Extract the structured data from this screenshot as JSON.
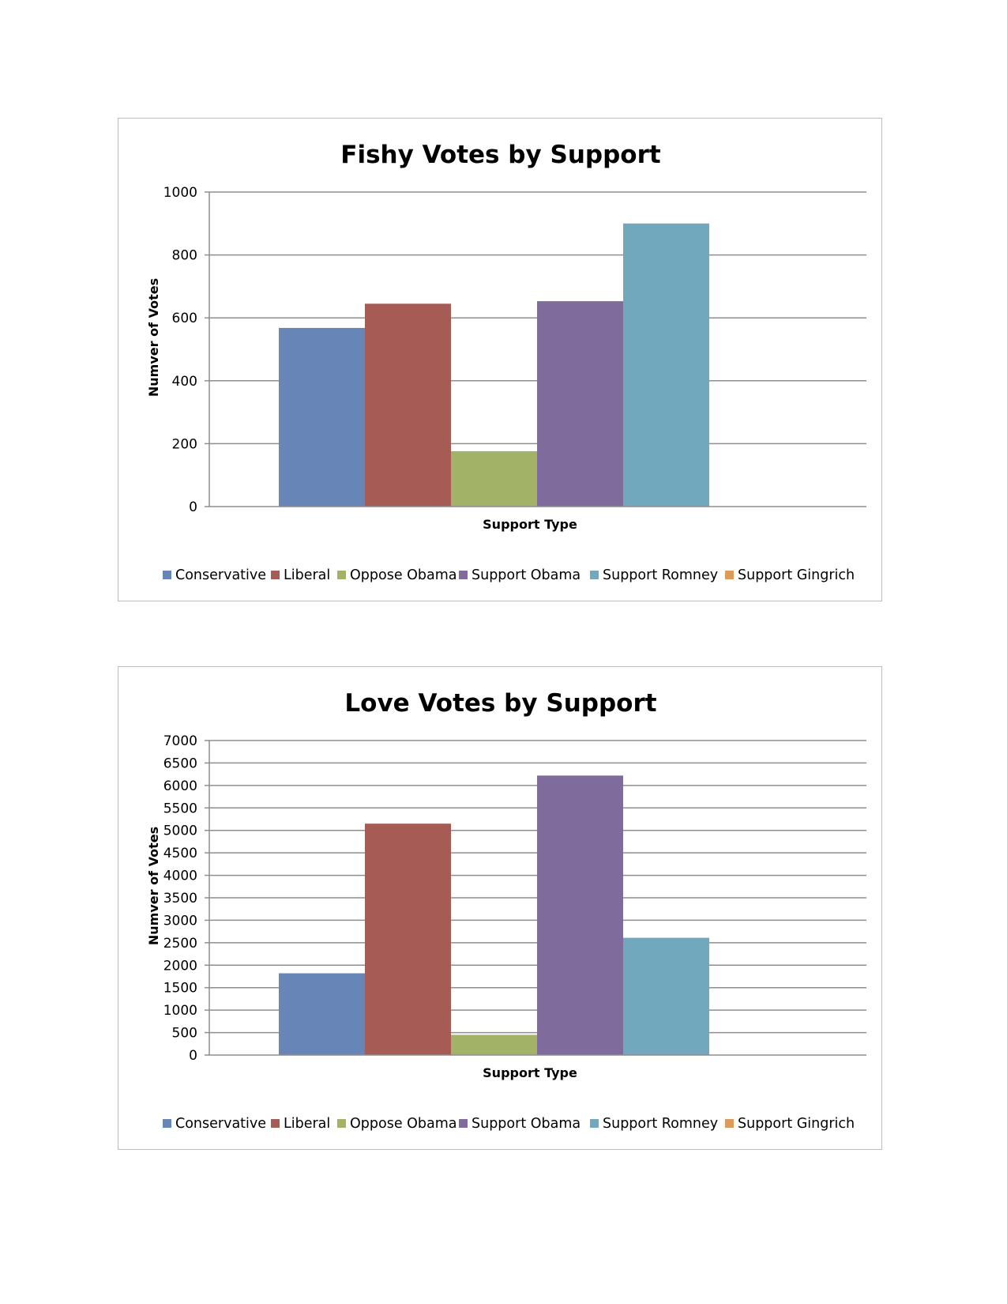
{
  "chart_data": [
    {
      "type": "bar",
      "title": "Fishy Votes by Support",
      "xlabel": "Support Type",
      "ylabel": "Numver of Votes",
      "ylim": [
        0,
        1000
      ],
      "yticks": [
        0,
        200,
        400,
        600,
        800,
        1000
      ],
      "grid": true,
      "legend": "bottom",
      "series": [
        {
          "name": "Conservative",
          "value": 568,
          "color": "#6785b6"
        },
        {
          "name": "Liberal",
          "value": 645,
          "color": "#a65b55"
        },
        {
          "name": "Oppose Obama",
          "value": 176,
          "color": "#a2b266"
        },
        {
          "name": "Support Obama",
          "value": 653,
          "color": "#7f6c9c"
        },
        {
          "name": "Support Romney",
          "value": 900,
          "color": "#72a8bd"
        },
        {
          "name": "Support Gingrich",
          "value": 0,
          "color": "#dd9a59"
        }
      ]
    },
    {
      "type": "bar",
      "title": "Love Votes by Support",
      "xlabel": "Support Type",
      "ylabel": "Numver of Votes",
      "ylim": [
        0,
        7000
      ],
      "yticks": [
        0,
        500,
        1000,
        1500,
        2000,
        2500,
        3000,
        3500,
        4000,
        4500,
        5000,
        5500,
        6000,
        6500,
        7000
      ],
      "grid": true,
      "legend": "bottom",
      "series": [
        {
          "name": "Conservative",
          "value": 1820,
          "color": "#6785b6"
        },
        {
          "name": "Liberal",
          "value": 5150,
          "color": "#a65b55"
        },
        {
          "name": "Oppose Obama",
          "value": 450,
          "color": "#a2b266"
        },
        {
          "name": "Support Obama",
          "value": 6220,
          "color": "#7f6c9c"
        },
        {
          "name": "Support Romney",
          "value": 2610,
          "color": "#72a8bd"
        },
        {
          "name": "Support Gingrich",
          "value": 0,
          "color": "#dd9a59"
        }
      ]
    }
  ]
}
